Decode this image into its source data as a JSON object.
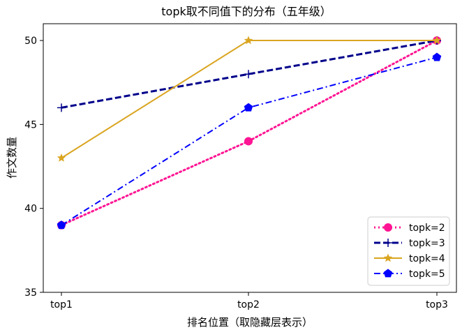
{
  "chart_data": {
    "type": "line",
    "title": "topk取不同值下的分布（五年级）",
    "xlabel": "排名位置（取隐藏层表示）",
    "ylabel": "作文数量",
    "categories": [
      "top1",
      "top2",
      "top3"
    ],
    "ylim": [
      35,
      51
    ],
    "yticks": [
      35,
      40,
      45,
      50
    ],
    "grid": false,
    "legend_position": "lower-right",
    "series": [
      {
        "name": "topk=2",
        "values": [
          39,
          44,
          50
        ],
        "color": "#ff1493",
        "style": "dotted",
        "marker": "circle"
      },
      {
        "name": "topk=3",
        "values": [
          46,
          48,
          50
        ],
        "color": "#00008b",
        "style": "dashed",
        "marker": "plus"
      },
      {
        "name": "topk=4",
        "values": [
          43,
          50,
          50
        ],
        "color": "#daa520",
        "style": "solid",
        "marker": "star"
      },
      {
        "name": "topk=5",
        "values": [
          39,
          46,
          49
        ],
        "color": "#0000ff",
        "style": "dashdot",
        "marker": "pentagon"
      }
    ]
  }
}
